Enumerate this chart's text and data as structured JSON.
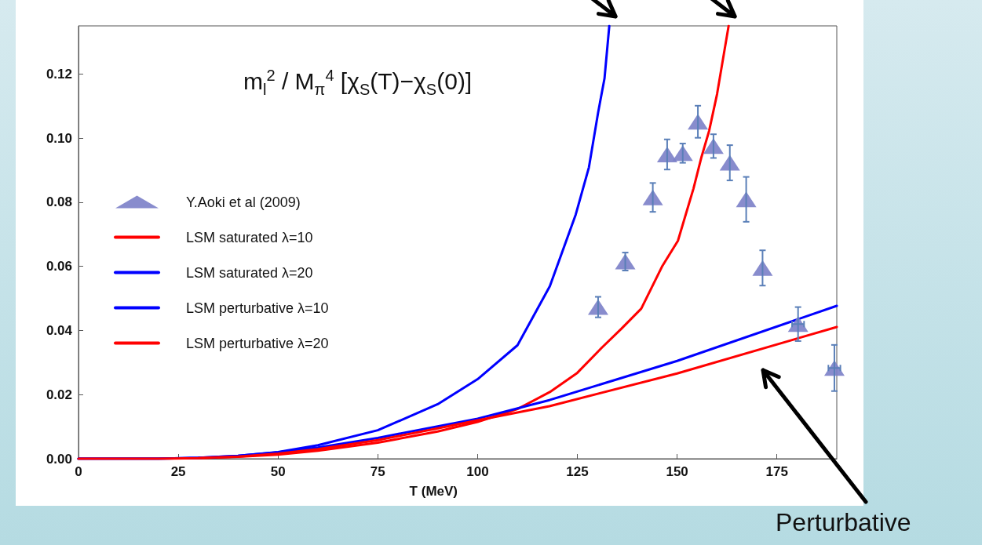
{
  "chart_data": {
    "type": "line",
    "title": "m$_{l}$$^{2}$ / M$_{π}$$^{4}$ [χ$_{S}$(T)−χ$_{S}$(0)]",
    "xlabel": "T (MeV)",
    "xlim": [
      0,
      190
    ],
    "xticks": [
      0,
      25,
      50,
      75,
      100,
      125,
      150,
      175
    ],
    "ylim": [
      0,
      0.135
    ],
    "yticks": [
      {
        "value": 0,
        "label": "0.00"
      },
      {
        "value": 0.02,
        "label": "0.02"
      },
      {
        "value": 0.04,
        "label": "0.04"
      },
      {
        "value": 0.06,
        "label": "0.06"
      },
      {
        "value": 0.08,
        "label": "0.08"
      },
      {
        "value": 0.1,
        "label": "0.10"
      },
      {
        "value": 0.12,
        "label": "0.12"
      }
    ],
    "grid": false,
    "legend": "left",
    "line_style": "solid",
    "series": [
      {
        "name": "Y.Aoki et al (2009)",
        "type": "scatter",
        "marker": "triangle",
        "color": "#7b80c8",
        "x": [
          130.2,
          137,
          143.9,
          147.5,
          151.4,
          155.2,
          159.1,
          163.2,
          167.3,
          171.4,
          180.3,
          189.4
        ],
        "values": [
          0.0473,
          0.0615,
          0.0815,
          0.0949,
          0.0953,
          0.1051,
          0.0975,
          0.0923,
          0.0809,
          0.0595,
          0.042,
          0.0283
        ],
        "errors": [
          0.0032,
          0.0028,
          0.0045,
          0.0047,
          0.003,
          0.005,
          0.0037,
          0.0055,
          0.007,
          0.0055,
          0.0053,
          0.0072
        ],
        "xerrors": [
          null,
          null,
          null,
          null,
          null,
          null,
          null,
          null,
          null,
          null,
          1.5,
          1.5
        ]
      },
      {
        "name": "LSM saturated λ=10",
        "color": "#ff0000",
        "marker": "none",
        "x": [
          0,
          20,
          30,
          40,
          50,
          60,
          75,
          90,
          100,
          110,
          118.1,
          125,
          131.1,
          136,
          141,
          146.2,
          150.2,
          154.1,
          156.1,
          158,
          160,
          162.9
        ],
        "values": [
          0,
          0,
          0.0002,
          0.0006,
          0.0013,
          0.0025,
          0.005,
          0.0085,
          0.0115,
          0.0155,
          0.0208,
          0.0268,
          0.0346,
          0.0405,
          0.0468,
          0.0599,
          0.068,
          0.0843,
          0.0941,
          0.1022,
          0.1137,
          0.135
        ]
      },
      {
        "name": "LSM saturated λ=20",
        "color": "#0000ff",
        "marker": "none",
        "x": [
          0,
          20,
          30,
          40,
          50,
          60,
          75,
          90,
          100,
          110,
          118.1,
          124.6,
          127.9,
          130.2,
          131.8,
          133
        ],
        "values": [
          0,
          0,
          0.0003,
          0.0009,
          0.0021,
          0.0042,
          0.0089,
          0.017,
          0.0248,
          0.0354,
          0.0538,
          0.0762,
          0.0909,
          0.108,
          0.1186,
          0.135
        ]
      },
      {
        "name": "LSM perturbative λ=10",
        "color": "#0000ff",
        "marker": "none",
        "x": [
          0,
          20,
          30,
          40,
          50,
          60,
          75,
          90,
          100,
          118,
          150,
          190
        ],
        "values": [
          0,
          0,
          0.0003,
          0.0009,
          0.002,
          0.0035,
          0.0065,
          0.0101,
          0.0125,
          0.0183,
          0.0305,
          0.0477
        ]
      },
      {
        "name": "LSM perturbative λ=20",
        "color": "#ff0000",
        "marker": "none",
        "x": [
          0,
          20,
          30,
          40,
          50,
          60,
          75,
          90,
          100,
          118,
          150,
          190
        ],
        "values": [
          0,
          0,
          0.0002,
          0.0007,
          0.0016,
          0.003,
          0.0058,
          0.0095,
          0.012,
          0.0164,
          0.0266,
          0.0411
        ]
      }
    ],
    "annotations": [
      "Perturbative"
    ]
  }
}
